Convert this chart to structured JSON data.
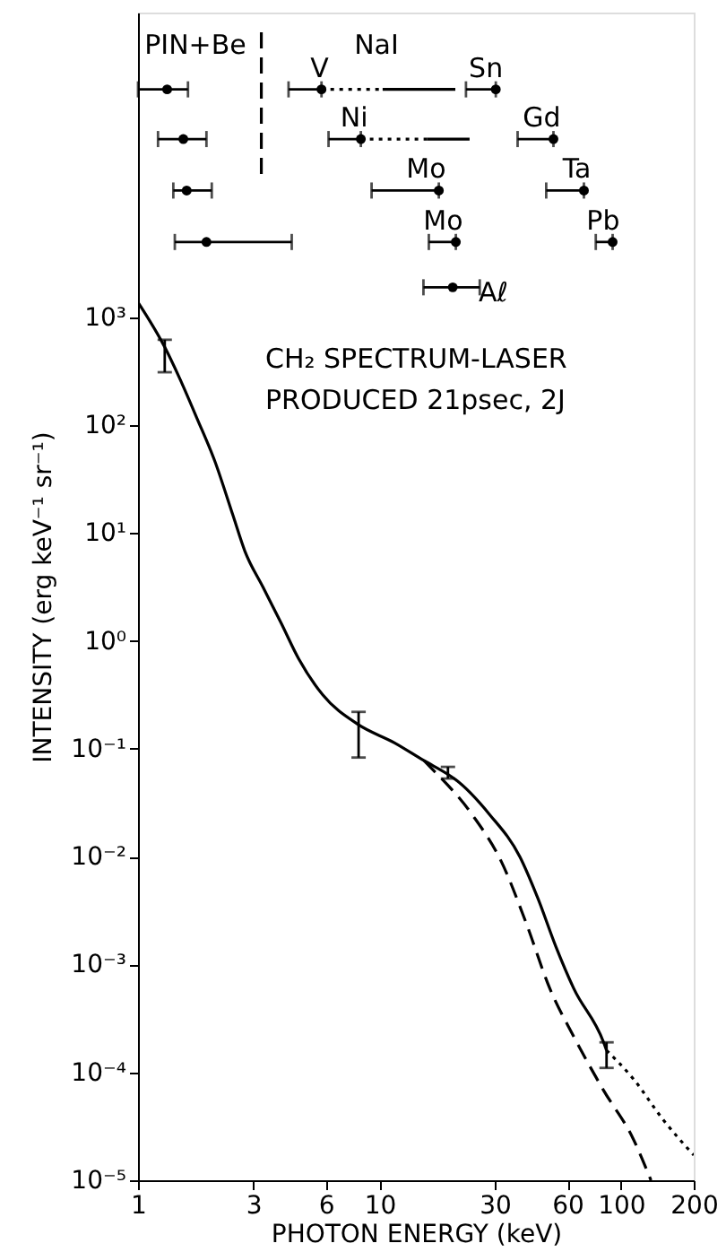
{
  "chart_data": {
    "type": "line",
    "xlabel": "PHOTON ENERGY (keV)",
    "ylabel": "INTENSITY (erg keV⁻¹ sr⁻¹)",
    "log": "xy",
    "grid": false,
    "xlim": [
      1,
      200
    ],
    "xticks": [
      1,
      3,
      6,
      10,
      30,
      60,
      100,
      200
    ],
    "ylim": [
      1e-05,
      670000
    ],
    "yticks": [
      {
        "value": 1e-05,
        "label": "10⁻⁵"
      },
      {
        "value": 0.0001,
        "label": "10⁻⁴"
      },
      {
        "value": 0.001,
        "label": "10⁻³"
      },
      {
        "value": 0.01,
        "label": "10⁻²"
      },
      {
        "value": 0.1,
        "label": "10⁻¹"
      },
      {
        "value": 1,
        "label": "10⁰"
      },
      {
        "value": 10,
        "label": "10¹"
      },
      {
        "value": 100,
        "label": "10²"
      },
      {
        "value": 1000,
        "label": "10³"
      }
    ],
    "series": [
      {
        "line_style": "solid",
        "color": "#000000",
        "x": [
          1.0,
          1.29,
          1.48,
          1.76,
          2.08,
          2.47,
          2.77,
          3.29,
          3.91,
          4.63,
          5.82,
          8.19,
          11.5,
          15.3,
          19.2,
          20.4,
          28.6,
          38.1,
          45.3,
          53.7,
          63.7,
          84.7,
          87.1
        ],
        "values": [
          1380,
          530,
          279,
          114,
          46.4,
          14.7,
          6.8,
          3.16,
          1.47,
          0.68,
          0.316,
          0.167,
          0.114,
          0.0776,
          0.058,
          0.0529,
          0.0245,
          0.01,
          0.00409,
          0.00147,
          0.0006,
          0.00019,
          0.00016
        ],
        "errors": [
          null,
          [
            310,
            620
          ],
          null,
          null,
          null,
          null,
          null,
          null,
          null,
          null,
          null,
          [
            0.083,
            0.22
          ],
          null,
          null,
          [
            0.053,
            0.068
          ],
          null,
          null,
          null,
          null,
          null,
          null,
          null,
          [
            0.00011,
            0.00019
          ]
        ]
      },
      {
        "type": "line",
        "line_style": "dotted",
        "color": "#000000",
        "x": [
          87.1,
          112,
          150,
          200
        ],
        "values": [
          0.00016,
          8.8e-05,
          3.6e-05,
          1.71e-05
        ]
      },
      {
        "type": "line",
        "line_style": "dashed",
        "color": "#000000",
        "x": [
          15.3,
          16.2,
          24.2,
          32.1,
          40.4,
          50.7,
          63.7,
          84.7,
          112,
          133
        ],
        "values": [
          0.0776,
          0.068,
          0.0245,
          0.0088,
          0.00245,
          0.0006,
          0.000215,
          6.8e-05,
          2.45e-05,
          1e-05
        ]
      },
      {
        "type": "line",
        "line_style": "dashed",
        "color": "#000000",
        "x": [
          3.24,
          3.24
        ],
        "values": [
          440000,
          19000
        ]
      },
      {
        "type": "scatter",
        "marker": "circle",
        "color": "#000000",
        "x": [
          1.32,
          1.54,
          1.59,
          1.92,
          20.1
        ],
        "values": [
          130000,
          45000,
          15000,
          5000,
          1900
        ],
        "xerrors": [
          [
            1.0,
            1.61
          ],
          [
            1.21,
            1.92
          ],
          [
            1.4,
            2.02
          ],
          [
            1.42,
            4.33
          ],
          [
            15.2,
            26.0
          ]
        ]
      },
      {
        "type": "scatter",
        "marker": "circle",
        "color": "#000000",
        "x": [
          5.75,
          30.3,
          8.37,
          52.5,
          17.6,
          70.2,
          20.7,
          92.3
        ],
        "values": [
          130000,
          130000,
          45000,
          45000,
          15000,
          15000,
          5000,
          5000
        ],
        "xerrors": [
          [
            4.2,
            5.75
          ],
          [
            22.8,
            30.3
          ],
          [
            6.15,
            8.37
          ],
          [
            37.3,
            52.5
          ],
          [
            9.27,
            17.6
          ],
          [
            49,
            70.2
          ],
          [
            16.0,
            20.7
          ],
          [
            78.6,
            92.3
          ]
        ]
      },
      {
        "type": "line",
        "line_style": "dotted",
        "color": "#000000",
        "x": [
          5.75,
          10.3
        ],
        "values": [
          130000,
          130000
        ]
      },
      {
        "type": "line",
        "line_style": "dotted",
        "color": "#000000",
        "x": [
          8.37,
          15.7
        ],
        "values": [
          45000,
          45000
        ]
      },
      {
        "type": "line",
        "line_style": "solid",
        "color": "#000000",
        "x": [
          10.3,
          20.6
        ],
        "values": [
          130000,
          130000
        ]
      },
      {
        "type": "line",
        "line_style": "solid",
        "color": "#000000",
        "x": [
          15.7,
          23.6
        ],
        "values": [
          45000,
          45000
        ]
      }
    ],
    "annotations": [
      "PIN+Be",
      "NaI",
      {
        "text": "V",
        "x": 5.75,
        "y": 130000
      },
      {
        "text": "Sn",
        "x": 30.3,
        "y": 130000
      },
      {
        "text": "Ni",
        "x": 8.37,
        "y": 45000
      },
      {
        "text": "Gd",
        "x": 52.5,
        "y": 45000
      },
      {
        "text": "Mo",
        "x": 17.6,
        "y": 15000
      },
      {
        "text": "Ta",
        "x": 70.2,
        "y": 15000
      },
      {
        "text": "Mo",
        "x": 20.7,
        "y": 5000
      },
      {
        "text": "Pb",
        "x": 92.3,
        "y": 5000
      },
      "Aℓ",
      "CH₂ SPECTRUM-LASER",
      "PRODUCED 21psec, 2J"
    ]
  }
}
